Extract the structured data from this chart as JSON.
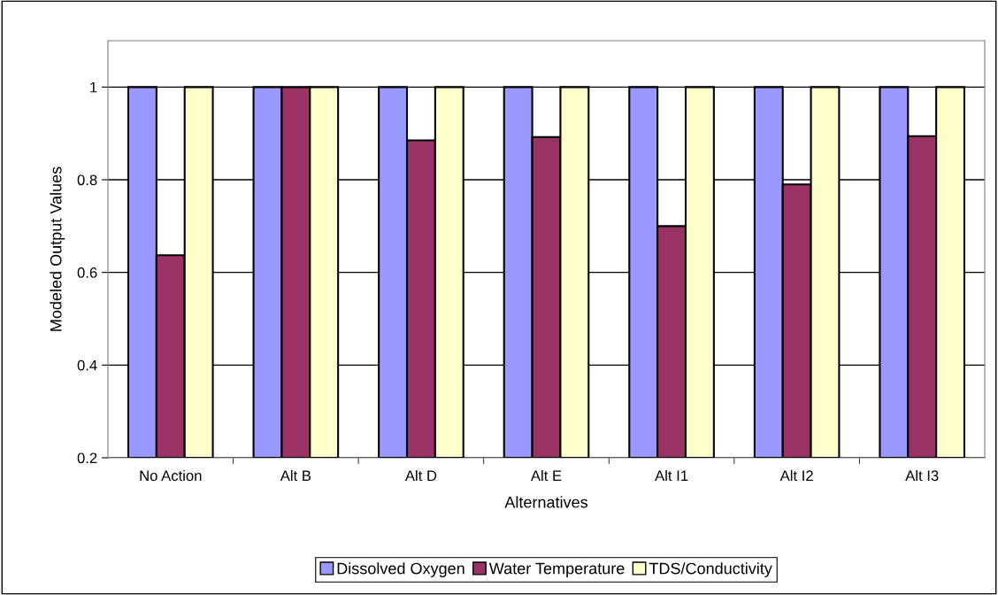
{
  "chart_data": {
    "type": "bar",
    "xlabel": "Alternatives",
    "ylabel": "Modeled Output Values",
    "categories": [
      "No Action",
      "Alt B",
      "Alt D",
      "Alt E",
      "Alt I1",
      "Alt I2",
      "Alt I3"
    ],
    "series": [
      {
        "name": "Dissolved Oxygen",
        "color": "#9999ff",
        "values": [
          1,
          1,
          1,
          1,
          1,
          1,
          1
        ]
      },
      {
        "name": "Water Temperature",
        "color": "#993366",
        "values": [
          0.637,
          1,
          0.885,
          0.892,
          0.7,
          0.79,
          0.894
        ]
      },
      {
        "name": "TDS/Conductivity",
        "color": "#ffffcc",
        "values": [
          1,
          1,
          1,
          1,
          1,
          1,
          1
        ]
      }
    ],
    "ylim": [
      0.2,
      1.1
    ],
    "yticks": [
      0.2,
      0.4,
      0.6,
      0.8,
      1
    ],
    "grid": "y",
    "legend": "bottom"
  }
}
